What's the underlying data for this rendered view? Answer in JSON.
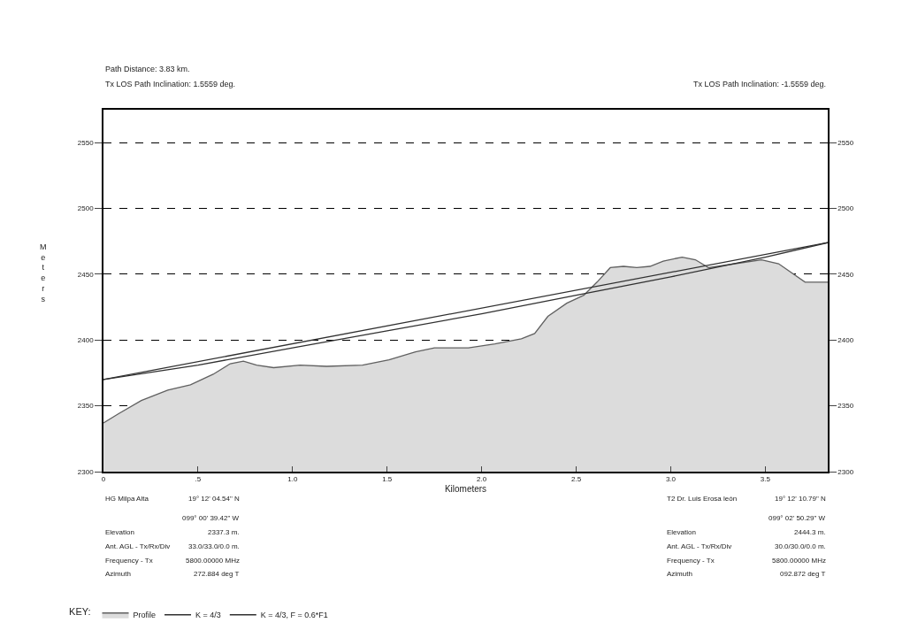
{
  "chart_data": {
    "type": "area",
    "title": "Path Distance: 3.83 km.",
    "subtitle": "Tx LOS Path Inclination: 1.5559 deg.",
    "xlabel": "Kilometers",
    "ylabel": "Meters",
    "legend_title": "KEY:",
    "xlim": [
      0,
      3.83
    ],
    "xticks": [
      0,
      {
        "value": 0.5,
        "label": ".5"
      },
      {
        "value": 1,
        "label": "1.0"
      },
      1.5,
      {
        "value": 2,
        "label": "2.0"
      },
      2.5,
      {
        "value": 3,
        "label": "3.0"
      },
      3.5
    ],
    "ylim": [
      2300,
      2575
    ],
    "yticks": [
      2300,
      2350,
      2400,
      2450,
      2500,
      2550
    ],
    "y2lim": [
      2300,
      2575
    ],
    "y2ticks": [
      2300,
      2350,
      2400,
      2450,
      2500,
      2550
    ],
    "grid": "y",
    "legend": "bottom",
    "series": [
      {
        "name": "Profile",
        "color": "#606060",
        "x": [
          0,
          0.08,
          0.2,
          0.34,
          0.46,
          0.58,
          0.67,
          0.74,
          0.81,
          0.9,
          1.04,
          1.18,
          1.37,
          1.51,
          1.65,
          1.75,
          1.93,
          2.07,
          2.21,
          2.28,
          2.35,
          2.45,
          2.54,
          2.61,
          2.68,
          2.75,
          2.82,
          2.89,
          2.96,
          3.06,
          3.13,
          3.2,
          3.34,
          3.48,
          3.57,
          3.71,
          3.83
        ],
        "values": [
          2337,
          2344,
          2354,
          2362,
          2366,
          2374,
          2382,
          2384,
          2381,
          2379,
          2381,
          2380,
          2381,
          2385,
          2391,
          2394,
          2394,
          2397,
          2401,
          2405,
          2418,
          2428,
          2434,
          2444,
          2455,
          2456,
          2455,
          2456,
          2460,
          2463,
          2461,
          2455,
          2458,
          2461,
          2458,
          2444,
          2444
        ]
      },
      {
        "name": "K = 4/3",
        "type": "line",
        "color": "#303030",
        "x": [
          0,
          3.83
        ],
        "values": [
          2370,
          2474
        ]
      },
      {
        "name": "K = 4/3, F = 0.6*F1",
        "type": "line",
        "color": "#303030",
        "x": [
          0,
          0.5,
          1,
          1.5,
          2,
          2.5,
          3,
          3.5,
          3.83
        ],
        "values": [
          2370,
          2381,
          2394,
          2407,
          2420,
          2434,
          2448,
          2463,
          2474
        ]
      }
    ],
    "annotations": [
      "Tx LOS Path Inclination: -1.5559 deg.",
      "HG Milpa Alta",
      "19° 12' 04.54\" N",
      "099° 00' 39.42\" W",
      "Elevation",
      "2337.3 m.",
      "Ant. AGL - Tx/Rx/Div",
      "33.0/33.0/0.0 m.",
      "Frequency - Tx",
      "5800.00000 MHz",
      "Azimuth",
      "272.884 deg T",
      "T2 Dr. Luis Erosa león",
      "19° 12' 10.79\" N",
      "099° 02' 50.29\" W",
      "Elevation",
      "2444.3 m.",
      "Ant. AGL - Tx/Rx/Div",
      "30.0/30.0/0.0 m.",
      "Frequency - Tx",
      "5800.00000 MHz",
      "Azimuth",
      "092.872 deg T"
    ]
  }
}
